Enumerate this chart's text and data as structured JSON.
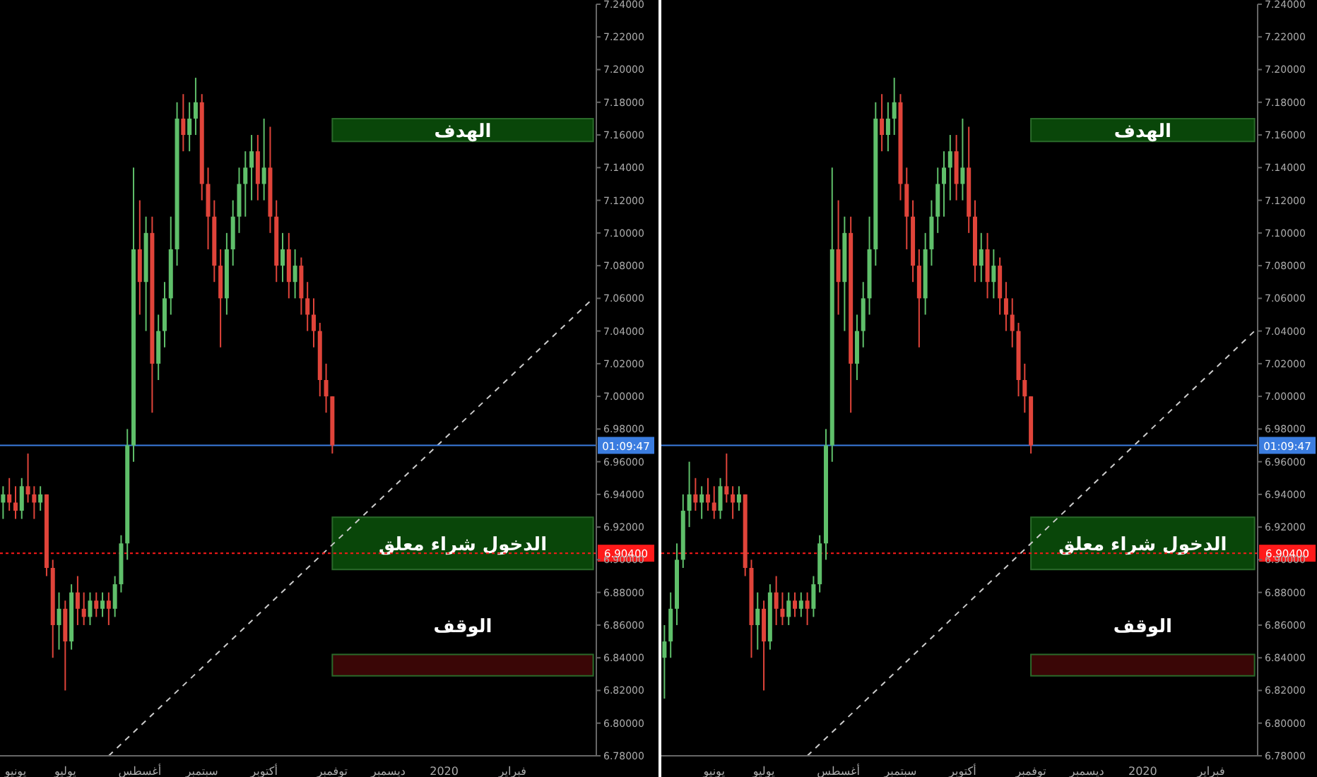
{
  "chart_data": [
    {
      "type": "candlestick",
      "ylim": [
        6.78,
        7.24
      ],
      "categories": [
        null,
        null,
        "يونيو",
        null,
        null,
        null,
        null,
        null,
        null,
        null,
        "يوليو",
        null,
        null,
        null,
        null,
        null,
        null,
        null,
        null,
        null,
        null,
        null,
        "أغسطس",
        null,
        null,
        null,
        null,
        null,
        null,
        null,
        null,
        null,
        "سبتمبر",
        null,
        null,
        null,
        null,
        null,
        null,
        null,
        null,
        null,
        "أكتوبر",
        null,
        null,
        null,
        null,
        null,
        null,
        null,
        null,
        null,
        null,
        "توفمبر",
        null,
        null,
        null,
        null,
        null,
        null,
        null,
        null,
        "ديسمبر",
        null,
        null,
        null,
        null,
        null,
        null,
        null,
        null,
        "2020",
        null,
        null,
        null,
        null,
        null,
        null,
        null,
        null,
        null,
        null,
        "فبراير",
        null,
        null,
        null,
        null,
        null,
        null,
        null,
        null,
        null,
        null,
        null,
        null,
        null
      ],
      "yticks": [
        {
          "value": 6.78,
          "label": "6.78000"
        },
        {
          "value": 6.8,
          "label": "6.80000"
        },
        {
          "value": 6.82,
          "label": "6.82000"
        },
        {
          "value": 6.84,
          "label": "6.84000"
        },
        {
          "value": 6.86,
          "label": "6.86000"
        },
        {
          "value": 6.88,
          "label": "6.88000"
        },
        {
          "value": 6.9,
          "label": "6.90000"
        },
        {
          "value": 6.92,
          "label": "6.92000"
        },
        {
          "value": 6.94,
          "label": "6.94000"
        },
        {
          "value": 6.96,
          "label": "6.96000"
        },
        {
          "value": 6.98,
          "label": "6.98000"
        },
        {
          "value": 7.0,
          "label": "7.00000"
        },
        {
          "value": 7.02,
          "label": "7.02000"
        },
        {
          "value": 7.04,
          "label": "7.04000"
        },
        {
          "value": 7.06,
          "label": "7.06000"
        },
        {
          "value": 7.08,
          "label": "7.08000"
        },
        {
          "value": 7.1,
          "label": "7.10000"
        },
        {
          "value": 7.12,
          "label": "7.12000"
        },
        {
          "value": 7.14,
          "label": "7.14000"
        },
        {
          "value": 7.16,
          "label": "7.16000"
        },
        {
          "value": 7.18,
          "label": "7.18000"
        },
        {
          "value": 7.2,
          "label": "7.20000"
        },
        {
          "value": 7.22,
          "label": "7.22000"
        },
        {
          "value": 7.24,
          "label": "7.24000"
        }
      ],
      "ohlc": [
        [
          6.935,
          6.945,
          6.925,
          6.94
        ],
        [
          6.94,
          6.95,
          6.93,
          6.935
        ],
        [
          6.935,
          6.945,
          6.925,
          6.93
        ],
        [
          6.93,
          6.95,
          6.925,
          6.945
        ],
        [
          6.945,
          6.965,
          6.935,
          6.94
        ],
        [
          6.94,
          6.945,
          6.925,
          6.935
        ],
        [
          6.935,
          6.945,
          6.93,
          6.94
        ],
        [
          6.94,
          6.94,
          6.89,
          6.895
        ],
        [
          6.895,
          6.9,
          6.84,
          6.86
        ],
        [
          6.86,
          6.88,
          6.845,
          6.87
        ],
        [
          6.87,
          6.875,
          6.82,
          6.85
        ],
        [
          6.85,
          6.885,
          6.845,
          6.88
        ],
        [
          6.88,
          6.89,
          6.86,
          6.87
        ],
        [
          6.87,
          6.88,
          6.86,
          6.865
        ],
        [
          6.865,
          6.88,
          6.86,
          6.875
        ],
        [
          6.875,
          6.88,
          6.865,
          6.87
        ],
        [
          6.87,
          6.88,
          6.865,
          6.875
        ],
        [
          6.875,
          6.88,
          6.86,
          6.87
        ],
        [
          6.87,
          6.89,
          6.865,
          6.885
        ],
        [
          6.885,
          6.915,
          6.88,
          6.91
        ],
        [
          6.91,
          6.98,
          6.9,
          6.97
        ],
        [
          6.97,
          7.14,
          6.96,
          7.09
        ],
        [
          7.09,
          7.12,
          7.05,
          7.07
        ],
        [
          7.07,
          7.11,
          7.04,
          7.1
        ],
        [
          7.1,
          7.11,
          6.99,
          7.02
        ],
        [
          7.02,
          7.05,
          7.01,
          7.04
        ],
        [
          7.04,
          7.07,
          7.03,
          7.06
        ],
        [
          7.06,
          7.11,
          7.05,
          7.09
        ],
        [
          7.09,
          7.18,
          7.08,
          7.17
        ],
        [
          7.17,
          7.185,
          7.15,
          7.16
        ],
        [
          7.16,
          7.18,
          7.15,
          7.17
        ],
        [
          7.17,
          7.195,
          7.16,
          7.18
        ],
        [
          7.18,
          7.185,
          7.12,
          7.13
        ],
        [
          7.13,
          7.14,
          7.09,
          7.11
        ],
        [
          7.11,
          7.12,
          7.07,
          7.08
        ],
        [
          7.08,
          7.09,
          7.03,
          7.06
        ],
        [
          7.06,
          7.1,
          7.05,
          7.09
        ],
        [
          7.09,
          7.12,
          7.08,
          7.11
        ],
        [
          7.11,
          7.14,
          7.1,
          7.13
        ],
        [
          7.13,
          7.15,
          7.11,
          7.14
        ],
        [
          7.14,
          7.16,
          7.12,
          7.15
        ],
        [
          7.15,
          7.16,
          7.12,
          7.13
        ],
        [
          7.13,
          7.17,
          7.12,
          7.14
        ],
        [
          7.14,
          7.165,
          7.1,
          7.11
        ],
        [
          7.11,
          7.12,
          7.07,
          7.08
        ],
        [
          7.08,
          7.1,
          7.07,
          7.09
        ],
        [
          7.09,
          7.1,
          7.06,
          7.07
        ],
        [
          7.07,
          7.09,
          7.06,
          7.08
        ],
        [
          7.08,
          7.085,
          7.05,
          7.06
        ],
        [
          7.06,
          7.07,
          7.04,
          7.05
        ],
        [
          7.05,
          7.06,
          7.03,
          7.04
        ],
        [
          7.04,
          7.045,
          7.0,
          7.01
        ],
        [
          7.01,
          7.02,
          6.99,
          7.0
        ],
        [
          7.0,
          7.0,
          6.965,
          6.97
        ],
        null,
        null,
        null,
        null,
        null,
        null,
        null,
        null,
        null,
        null,
        null,
        null,
        null,
        null,
        null,
        null,
        null,
        null,
        null,
        null,
        null,
        null,
        null,
        null,
        null,
        null,
        null,
        null,
        null,
        null,
        null,
        null,
        null,
        null,
        null,
        null,
        null,
        null,
        null,
        null,
        null,
        null
      ],
      "series": [
        {
          "type": "line",
          "values": [
            null,
            null,
            null,
            null,
            null,
            null,
            null,
            null,
            null,
            null,
            null,
            null,
            null,
            null,
            null,
            null,
            null,
            6.78,
            null,
            null,
            null,
            null,
            null,
            null,
            null,
            null,
            null,
            null,
            null,
            null,
            null,
            null,
            null,
            null,
            null,
            null,
            null,
            null,
            null,
            null,
            null,
            null,
            null,
            null,
            null,
            null,
            null,
            null,
            null,
            null,
            null,
            null,
            null,
            null,
            null,
            null,
            null,
            null,
            null,
            null,
            null,
            null,
            null,
            null,
            null,
            null,
            null,
            null,
            null,
            null,
            null,
            null,
            null,
            null,
            null,
            null,
            null,
            null,
            null,
            null,
            null,
            null,
            null,
            null,
            null,
            null,
            null,
            null,
            null,
            null,
            null,
            null,
            null,
            null,
            null,
            7.06
          ],
          "color": "#cccccc",
          "line_style": "dashed"
        }
      ],
      "ref_lines": [
        {
          "axis": "y",
          "value": 6.97,
          "color": "#3b7de0",
          "line_style": "solid"
        },
        {
          "axis": "y",
          "value": 6.904,
          "label": "6.90400",
          "color": "#ff1a1a",
          "line_style": "dotted"
        }
      ],
      "bands": [
        {
          "axis": "y",
          "from": 7.156,
          "to": 7.17,
          "label": "الهدف",
          "color": "#0a4a0a"
        },
        {
          "axis": "y",
          "from": 6.894,
          "to": 6.926,
          "label": "الدخول شراء معلق",
          "color": "#0a4a0a"
        },
        {
          "axis": "y",
          "from": 6.829,
          "to": 6.842,
          "label": "الوقف",
          "color": "#3d0606"
        }
      ],
      "annotations": [
        "01:09:47"
      ]
    },
    {
      "type": "candlestick",
      "ylim": [
        6.78,
        7.24
      ],
      "categories": [
        null,
        null,
        null,
        null,
        null,
        null,
        null,
        null,
        "يونيو",
        null,
        null,
        null,
        null,
        null,
        null,
        null,
        "يوليو",
        null,
        null,
        null,
        null,
        null,
        null,
        null,
        null,
        null,
        null,
        null,
        "أغسطس",
        null,
        null,
        null,
        null,
        null,
        null,
        null,
        null,
        null,
        "سبتمبر",
        null,
        null,
        null,
        null,
        null,
        null,
        null,
        null,
        null,
        "أكتوبر",
        null,
        null,
        null,
        null,
        null,
        null,
        null,
        null,
        null,
        null,
        "توفمبر",
        null,
        null,
        null,
        null,
        null,
        null,
        null,
        null,
        "ديسمبر",
        null,
        null,
        null,
        null,
        null,
        null,
        null,
        null,
        "2020",
        null,
        null,
        null,
        null,
        null,
        null,
        null,
        null,
        null,
        null,
        "فبراير",
        null,
        null,
        null,
        null,
        null,
        null,
        null
      ],
      "yticks": [
        {
          "value": 6.78,
          "label": "6.78000"
        },
        {
          "value": 6.8,
          "label": "6.80000"
        },
        {
          "value": 6.82,
          "label": "6.82000"
        },
        {
          "value": 6.84,
          "label": "6.84000"
        },
        {
          "value": 6.86,
          "label": "6.86000"
        },
        {
          "value": 6.88,
          "label": "6.88000"
        },
        {
          "value": 6.9,
          "label": "6.90000"
        },
        {
          "value": 6.92,
          "label": "6.92000"
        },
        {
          "value": 6.94,
          "label": "6.94000"
        },
        {
          "value": 6.96,
          "label": "6.96000"
        },
        {
          "value": 6.98,
          "label": "6.98000"
        },
        {
          "value": 7.0,
          "label": "7.00000"
        },
        {
          "value": 7.02,
          "label": "7.02000"
        },
        {
          "value": 7.04,
          "label": "7.04000"
        },
        {
          "value": 7.06,
          "label": "7.06000"
        },
        {
          "value": 7.08,
          "label": "7.08000"
        },
        {
          "value": 7.1,
          "label": "7.10000"
        },
        {
          "value": 7.12,
          "label": "7.12000"
        },
        {
          "value": 7.14,
          "label": "7.14000"
        },
        {
          "value": 7.16,
          "label": "7.16000"
        },
        {
          "value": 7.18,
          "label": "7.18000"
        },
        {
          "value": 7.2,
          "label": "7.20000"
        },
        {
          "value": 7.22,
          "label": "7.22000"
        },
        {
          "value": 7.24,
          "label": "7.24000"
        }
      ],
      "ohlc": [
        [
          6.84,
          6.86,
          6.815,
          6.85
        ],
        [
          6.85,
          6.88,
          6.84,
          6.87
        ],
        [
          6.87,
          6.91,
          6.86,
          6.9
        ],
        [
          6.9,
          6.94,
          6.895,
          6.93
        ],
        [
          6.93,
          6.96,
          6.92,
          6.94
        ],
        [
          6.94,
          6.95,
          6.93,
          6.935
        ],
        [
          6.935,
          6.945,
          6.925,
          6.94
        ],
        [
          6.94,
          6.95,
          6.93,
          6.935
        ],
        [
          6.935,
          6.945,
          6.925,
          6.93
        ],
        [
          6.93,
          6.95,
          6.925,
          6.945
        ],
        [
          6.945,
          6.965,
          6.935,
          6.94
        ],
        [
          6.94,
          6.945,
          6.925,
          6.935
        ],
        [
          6.935,
          6.945,
          6.93,
          6.94
        ],
        [
          6.94,
          6.94,
          6.89,
          6.895
        ],
        [
          6.895,
          6.9,
          6.84,
          6.86
        ],
        [
          6.86,
          6.88,
          6.845,
          6.87
        ],
        [
          6.87,
          6.875,
          6.82,
          6.85
        ],
        [
          6.85,
          6.885,
          6.845,
          6.88
        ],
        [
          6.88,
          6.89,
          6.86,
          6.87
        ],
        [
          6.87,
          6.88,
          6.86,
          6.865
        ],
        [
          6.865,
          6.88,
          6.86,
          6.875
        ],
        [
          6.875,
          6.88,
          6.865,
          6.87
        ],
        [
          6.87,
          6.88,
          6.865,
          6.875
        ],
        [
          6.875,
          6.88,
          6.86,
          6.87
        ],
        [
          6.87,
          6.89,
          6.865,
          6.885
        ],
        [
          6.885,
          6.915,
          6.88,
          6.91
        ],
        [
          6.91,
          6.98,
          6.9,
          6.97
        ],
        [
          6.97,
          7.14,
          6.96,
          7.09
        ],
        [
          7.09,
          7.12,
          7.05,
          7.07
        ],
        [
          7.07,
          7.11,
          7.04,
          7.1
        ],
        [
          7.1,
          7.11,
          6.99,
          7.02
        ],
        [
          7.02,
          7.05,
          7.01,
          7.04
        ],
        [
          7.04,
          7.07,
          7.03,
          7.06
        ],
        [
          7.06,
          7.11,
          7.05,
          7.09
        ],
        [
          7.09,
          7.18,
          7.08,
          7.17
        ],
        [
          7.17,
          7.185,
          7.15,
          7.16
        ],
        [
          7.16,
          7.18,
          7.15,
          7.17
        ],
        [
          7.17,
          7.195,
          7.16,
          7.18
        ],
        [
          7.18,
          7.185,
          7.12,
          7.13
        ],
        [
          7.13,
          7.14,
          7.09,
          7.11
        ],
        [
          7.11,
          7.12,
          7.07,
          7.08
        ],
        [
          7.08,
          7.09,
          7.03,
          7.06
        ],
        [
          7.06,
          7.1,
          7.05,
          7.09
        ],
        [
          7.09,
          7.12,
          7.08,
          7.11
        ],
        [
          7.11,
          7.14,
          7.1,
          7.13
        ],
        [
          7.13,
          7.15,
          7.11,
          7.14
        ],
        [
          7.14,
          7.16,
          7.12,
          7.15
        ],
        [
          7.15,
          7.16,
          7.12,
          7.13
        ],
        [
          7.13,
          7.17,
          7.12,
          7.14
        ],
        [
          7.14,
          7.165,
          7.1,
          7.11
        ],
        [
          7.11,
          7.12,
          7.07,
          7.08
        ],
        [
          7.08,
          7.1,
          7.07,
          7.09
        ],
        [
          7.09,
          7.1,
          7.06,
          7.07
        ],
        [
          7.07,
          7.09,
          7.06,
          7.08
        ],
        [
          7.08,
          7.085,
          7.05,
          7.06
        ],
        [
          7.06,
          7.07,
          7.04,
          7.05
        ],
        [
          7.05,
          7.06,
          7.03,
          7.04
        ],
        [
          7.04,
          7.045,
          7.0,
          7.01
        ],
        [
          7.01,
          7.02,
          6.99,
          7.0
        ],
        [
          7.0,
          7.0,
          6.965,
          6.97
        ],
        null,
        null,
        null,
        null,
        null,
        null,
        null,
        null,
        null,
        null,
        null,
        null,
        null,
        null,
        null,
        null,
        null,
        null,
        null,
        null,
        null,
        null,
        null,
        null,
        null,
        null,
        null,
        null,
        null,
        null,
        null,
        null,
        null,
        null,
        null,
        null
      ],
      "series": [
        {
          "type": "line",
          "values": [
            null,
            null,
            null,
            null,
            null,
            null,
            null,
            null,
            null,
            null,
            null,
            null,
            null,
            null,
            null,
            null,
            null,
            null,
            null,
            null,
            null,
            null,
            null,
            6.78,
            null,
            null,
            null,
            null,
            null,
            null,
            null,
            null,
            null,
            null,
            null,
            null,
            null,
            null,
            null,
            null,
            null,
            null,
            null,
            null,
            null,
            null,
            null,
            null,
            null,
            null,
            null,
            null,
            null,
            null,
            null,
            null,
            null,
            null,
            null,
            null,
            null,
            null,
            null,
            null,
            null,
            null,
            null,
            null,
            null,
            null,
            null,
            null,
            null,
            null,
            null,
            null,
            null,
            null,
            null,
            null,
            null,
            null,
            null,
            null,
            null,
            null,
            null,
            null,
            null,
            null,
            null,
            null,
            null,
            null,
            null,
            7.04
          ],
          "color": "#cccccc",
          "line_style": "dashed"
        }
      ],
      "ref_lines": [
        {
          "axis": "y",
          "value": 6.97,
          "color": "#3b7de0",
          "line_style": "solid"
        },
        {
          "axis": "y",
          "value": 6.904,
          "label": "6.90400",
          "color": "#ff1a1a",
          "line_style": "dotted"
        }
      ],
      "bands": [
        {
          "axis": "y",
          "from": 7.156,
          "to": 7.17,
          "label": "الهدف",
          "color": "#0a4a0a"
        },
        {
          "axis": "y",
          "from": 6.894,
          "to": 6.926,
          "label": "الدخول شراء معلق",
          "color": "#0a4a0a"
        },
        {
          "axis": "y",
          "from": 6.829,
          "to": 6.842,
          "label": "الوقف",
          "color": "#3d0606"
        }
      ],
      "annotations": [
        "01:09:47"
      ]
    }
  ]
}
